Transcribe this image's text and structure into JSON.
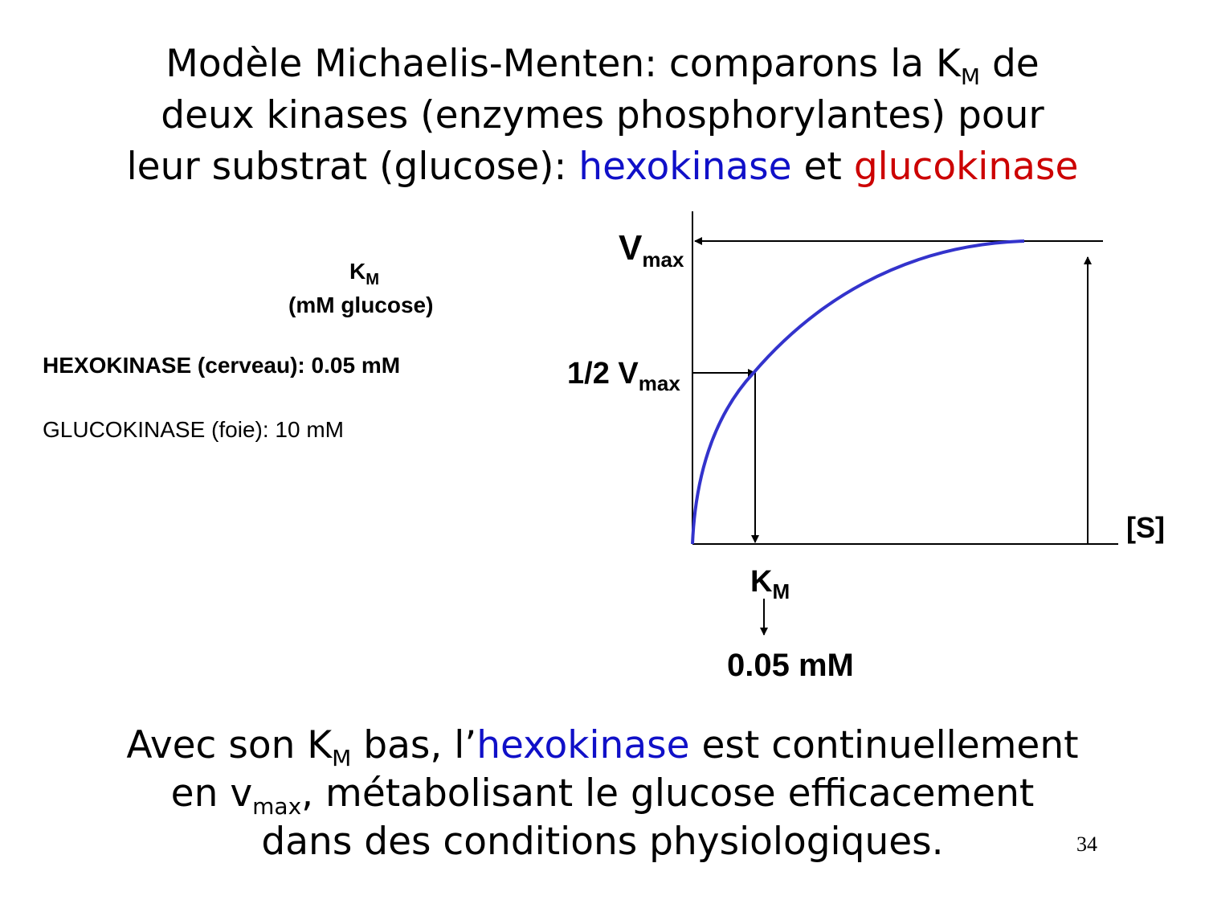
{
  "title": {
    "line1_text": "Modèle Michaelis-Menten: comparons la K",
    "line1_sub": "M",
    "line1_end": " de",
    "line2": "deux kinases (enzymes phosphorylantes) pour",
    "line3_start": "leur substrat (glucose): ",
    "hexokinase": "hexokinase",
    "et": " et ",
    "glucokinase": "glucokinase"
  },
  "table": {
    "header_k": "K",
    "header_sub": "M",
    "header_unit": "(mM glucose)",
    "hexokinase_row": "HEXOKINASE (cerveau): 0.05 mM",
    "glucokinase_row": "GLUCOKINASE (foie): 10 mM"
  },
  "diagram": {
    "vmax_label": "V",
    "vmax_sub": "max",
    "half_vmax_label": "1/2 V",
    "half_vmax_sub": "max",
    "x_axis_label": "[S]",
    "km_label": "K",
    "km_sub": "M",
    "km_value": "0.05 mM",
    "curve_color": "#3333cc"
  },
  "bottom": {
    "p1": "Avec son K",
    "p1_sub": "M",
    "p2": " bas, l’",
    "hexokinase": "hexokinase",
    "p3": " est continuellement",
    "p4": "en v",
    "p4_sub": "max",
    "p5": ", métabolisant le glucose efficacement",
    "p6": "dans des conditions physiologiques."
  },
  "page_number": "34",
  "colors": {
    "blue": "#1010c8",
    "red": "#cc0000"
  }
}
